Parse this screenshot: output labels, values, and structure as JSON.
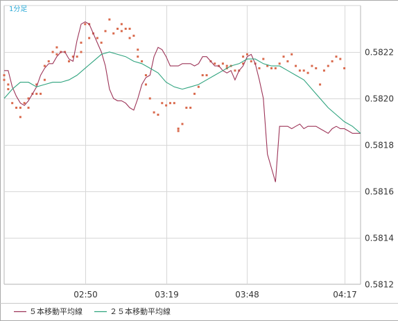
{
  "chart_data": {
    "type": "line",
    "title": "1分足",
    "xlabel": "",
    "ylabel": "",
    "ylim": [
      0.5812,
      0.5824
    ],
    "xlim": [
      0,
      88
    ],
    "grid": true,
    "legend_position": "bottom",
    "x_ticks": [
      {
        "x": 20,
        "label": "02:50"
      },
      {
        "x": 40,
        "label": "03:19"
      },
      {
        "x": 60,
        "label": "03:48"
      },
      {
        "x": 84,
        "label": "04:17"
      }
    ],
    "y_ticks": [
      {
        "value": 0.5812,
        "label": "0.5812"
      },
      {
        "value": 0.5814,
        "label": "0.5814"
      },
      {
        "value": 0.5816,
        "label": "0.5816"
      },
      {
        "value": 0.5818,
        "label": "0.5818"
      },
      {
        "value": 0.582,
        "label": "0.5820"
      },
      {
        "value": 0.5822,
        "label": "0.5822"
      }
    ],
    "price_points": {
      "name": "",
      "color": "#d9694c",
      "x": [
        0,
        0,
        1,
        1,
        2,
        3,
        4,
        4,
        5,
        6,
        6,
        7,
        8,
        8,
        9,
        10,
        10,
        11,
        12,
        13,
        13,
        14,
        15,
        16,
        17,
        18,
        19,
        19,
        20,
        21,
        21,
        22,
        23,
        24,
        25,
        26,
        27,
        28,
        29,
        29,
        30,
        31,
        31,
        32,
        33,
        33,
        34,
        35,
        35,
        36,
        37,
        38,
        39,
        40,
        41,
        42,
        43,
        43,
        44,
        45,
        46,
        47,
        48,
        49,
        50,
        51,
        52,
        53,
        54,
        55,
        55,
        56,
        57,
        58,
        59,
        59,
        60,
        61,
        62,
        63,
        64,
        65,
        66,
        67,
        68,
        69,
        70,
        71,
        72,
        73,
        74,
        75,
        76,
        77,
        78,
        79,
        80,
        81,
        82,
        83,
        84
      ],
      "y": [
        0.58208,
        0.5821,
        0.58206,
        0.58204,
        0.58198,
        0.58196,
        0.58192,
        0.58196,
        0.58198,
        0.582,
        0.58196,
        0.58202,
        0.58206,
        0.58202,
        0.58202,
        0.58208,
        0.58214,
        0.58216,
        0.5822,
        0.58222,
        0.58219,
        0.5822,
        0.5822,
        0.58216,
        0.58218,
        0.58218,
        0.5822,
        0.58224,
        0.58232,
        0.58226,
        0.58232,
        0.58228,
        0.58226,
        0.58224,
        0.58229,
        0.58234,
        0.58228,
        0.5823,
        0.58232,
        0.58229,
        0.5823,
        0.5823,
        0.58226,
        0.58227,
        0.58221,
        0.58218,
        0.58216,
        0.5821,
        0.58206,
        0.582,
        0.58194,
        0.58193,
        0.58198,
        0.58197,
        0.58198,
        0.58198,
        0.58186,
        0.58187,
        0.58189,
        0.58196,
        0.58196,
        0.58202,
        0.58205,
        0.5821,
        0.5821,
        0.58216,
        0.58215,
        0.58214,
        0.58215,
        0.58214,
        0.58213,
        0.58214,
        0.58212,
        0.58212,
        0.58218,
        0.58215,
        0.58219,
        0.58216,
        0.58215,
        0.58213,
        0.58217,
        0.58214,
        0.58213,
        0.58213,
        0.58215,
        0.58218,
        0.58216,
        0.58219,
        0.58214,
        0.58212,
        0.58212,
        0.58211,
        0.58214,
        0.58213,
        0.58206,
        0.58212,
        0.58214,
        0.58216,
        0.58218,
        0.58217,
        0.58213
      ],
      "note": ""
    },
    "series": [
      {
        "name": "５本移動平均線",
        "color": "#9c3357",
        "x": [
          0,
          1,
          2,
          3,
          4,
          5,
          6,
          7,
          8,
          9,
          10,
          11,
          12,
          13,
          14,
          15,
          16,
          17,
          18,
          19,
          20,
          21,
          22,
          23,
          24,
          25,
          26,
          27,
          28,
          29,
          30,
          31,
          32,
          33,
          34,
          35,
          36,
          37,
          38,
          39,
          40,
          41,
          42,
          43,
          44,
          45,
          46,
          47,
          48,
          49,
          50,
          51,
          52,
          53,
          54,
          55,
          56,
          57,
          58,
          59,
          60,
          61,
          62,
          63,
          64,
          65,
          66,
          67,
          68,
          69,
          70,
          71,
          72,
          73,
          74,
          75,
          76,
          77,
          78,
          79,
          80,
          81,
          82,
          83,
          84,
          85,
          86,
          87,
          88
        ],
        "y": [
          0.58212,
          0.58212,
          0.58205,
          0.58201,
          0.58198,
          0.58197,
          0.58199,
          0.58202,
          0.58205,
          0.5821,
          0.58213,
          0.58215,
          0.58215,
          0.58218,
          0.5822,
          0.5822,
          0.58217,
          0.58216,
          0.58225,
          0.58232,
          0.58233,
          0.58232,
          0.58228,
          0.58224,
          0.5822,
          0.58214,
          0.58204,
          0.582,
          0.58199,
          0.58199,
          0.58198,
          0.58196,
          0.58195,
          0.582,
          0.58206,
          0.58209,
          0.5821,
          0.58218,
          0.58222,
          0.58221,
          0.58218,
          0.58214,
          0.58214,
          0.58214,
          0.58215,
          0.58215,
          0.58215,
          0.58214,
          0.58215,
          0.58218,
          0.58218,
          0.58216,
          0.58214,
          0.58214,
          0.58212,
          0.58211,
          0.58212,
          0.58208,
          0.58212,
          0.58214,
          0.58218,
          0.58219,
          0.58215,
          0.58208,
          0.582,
          0.58176,
          0.5817,
          0.58164,
          0.58188,
          0.58188,
          0.58188,
          0.58187,
          0.58188,
          0.58189,
          0.58187,
          0.58188,
          0.58188,
          0.58188,
          0.58187,
          0.58186,
          0.58185,
          0.58187,
          0.58188,
          0.58187,
          0.58187,
          0.58186,
          0.58185,
          0.58185,
          0.58185
        ]
      },
      {
        "name": "２５本移動平均線",
        "color": "#2ea37e",
        "x": [
          0,
          2,
          4,
          6,
          8,
          10,
          12,
          14,
          16,
          18,
          20,
          22,
          24,
          26,
          28,
          30,
          32,
          34,
          36,
          38,
          40,
          42,
          44,
          46,
          48,
          50,
          52,
          54,
          56,
          58,
          60,
          62,
          64,
          66,
          68,
          70,
          72,
          74,
          76,
          78,
          80,
          82,
          84,
          86,
          88
        ],
        "y": [
          0.582,
          0.58204,
          0.58207,
          0.58207,
          0.58205,
          0.58206,
          0.58207,
          0.58207,
          0.58208,
          0.5821,
          0.58213,
          0.58216,
          0.58219,
          0.5822,
          0.58219,
          0.58218,
          0.58216,
          0.58215,
          0.58213,
          0.58211,
          0.58207,
          0.58205,
          0.58204,
          0.58205,
          0.58206,
          0.58208,
          0.5821,
          0.58212,
          0.58214,
          0.58215,
          0.58217,
          0.58217,
          0.58215,
          0.58214,
          0.58214,
          0.58212,
          0.5821,
          0.58208,
          0.58204,
          0.582,
          0.58196,
          0.58193,
          0.5819,
          0.58188,
          0.58185
        ]
      }
    ]
  }
}
